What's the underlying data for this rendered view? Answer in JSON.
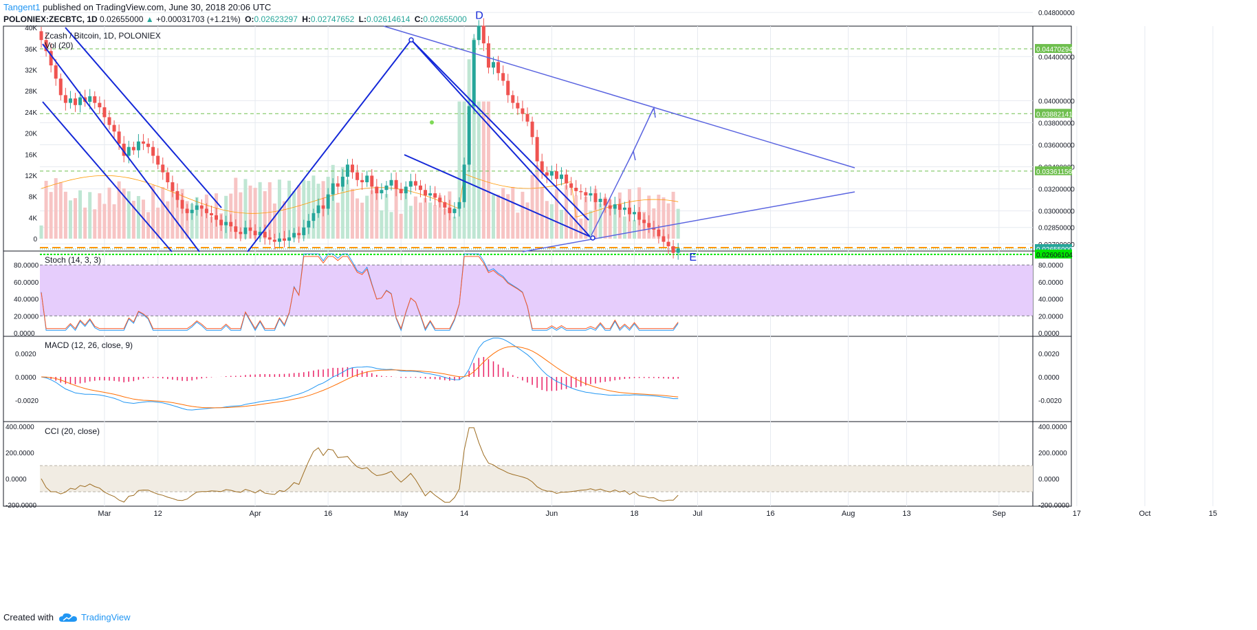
{
  "header": {
    "username": "Tangent1",
    "published_text": "published on TradingView.com, June 30, 2018 20:06 UTC",
    "symbol": "POLONIEX:ZECBTC, 1D",
    "last": "0.02655000",
    "change": "+0.00031703 (+1.21%)",
    "o_label": "O:",
    "o": "0.02623297",
    "h_label": "H:",
    "h": "0.02747652",
    "l_label": "L:",
    "l": "0.02614614",
    "c_label": "C:",
    "c": "0.02655000"
  },
  "footer": {
    "created_with": "Created with",
    "brand": "TradingView"
  },
  "colors": {
    "up": "#26a69a",
    "down": "#ef5350",
    "grid": "#e6eaf0",
    "trend": "#1428d8",
    "proj": "#5a64e0",
    "green_dash": "#6fbf4f",
    "orange_dash": "#ff9800",
    "stoch_k": "#2196f3",
    "stoch_d": "#ff5722",
    "macd": "#2196f3",
    "signal": "#ff6d00",
    "hist": "#e91e63",
    "cci": "#9c6b1f"
  },
  "chart_data": [
    {
      "type": "candlestick",
      "title": "Zcash / Bitcoin, 1D, POLONIEX",
      "legend": "Vol (20)",
      "x_ticks": [
        "Mar",
        "12",
        "Apr",
        "16",
        "May",
        "14",
        "Jun",
        "18",
        "Jul",
        "16",
        "Aug",
        "13",
        "Sep",
        "17",
        "Oct",
        "15"
      ],
      "x_start": "2018-02-16",
      "right_axis": [
        "0.04800000",
        "0.04400000",
        "0.04000000",
        "0.03800000",
        "0.03600000",
        "0.03400000",
        "0.03200000",
        "0.03000000",
        "0.02850000",
        "0.02700000"
      ],
      "left_axis": [
        "40K",
        "36K",
        "32K",
        "28K",
        "24K",
        "20K",
        "16K",
        "12K",
        "8K",
        "4K",
        "0"
      ],
      "price_tags": [
        {
          "label": "0.04470294",
          "value": 0.04470294
        },
        {
          "label": "0.03882141",
          "value": 0.03882141
        },
        {
          "label": "0.03361156",
          "value": 0.03361156
        },
        {
          "label": "0.02655000",
          "value": 0.02655
        },
        {
          "label": "0.02606104",
          "value": 0.02606104
        }
      ],
      "annotations": [
        {
          "text": "D",
          "date": "2018-05-17",
          "value": 0.0478
        },
        {
          "text": "E",
          "date": "2018-06-30",
          "value": 0.02585
        }
      ],
      "closes": [
        0.0455,
        0.0445,
        0.0432,
        0.042,
        0.0405,
        0.0398,
        0.0402,
        0.0396,
        0.0403,
        0.0399,
        0.0404,
        0.0398,
        0.0394,
        0.0385,
        0.0378,
        0.0372,
        0.0361,
        0.035,
        0.0358,
        0.0355,
        0.0363,
        0.0361,
        0.0358,
        0.035,
        0.0342,
        0.0335,
        0.0326,
        0.0318,
        0.031,
        0.0302,
        0.0298,
        0.0301,
        0.0305,
        0.0302,
        0.0298,
        0.0296,
        0.0292,
        0.0287,
        0.029,
        0.0286,
        0.0281,
        0.0279,
        0.0285,
        0.0282,
        0.0278,
        0.0281,
        0.0276,
        0.0274,
        0.0272,
        0.0275,
        0.0273,
        0.0276,
        0.028,
        0.0278,
        0.0285,
        0.0291,
        0.0298,
        0.0305,
        0.0302,
        0.0315,
        0.0325,
        0.0322,
        0.0331,
        0.0342,
        0.0335,
        0.0328,
        0.0326,
        0.0332,
        0.0322,
        0.0316,
        0.0319,
        0.0323,
        0.0328,
        0.032,
        0.0316,
        0.0322,
        0.0327,
        0.0323,
        0.0319,
        0.0314,
        0.0316,
        0.0312,
        0.0308,
        0.0303,
        0.0298,
        0.0302,
        0.0308,
        0.0342,
        0.0395,
        0.0455,
        0.0468,
        0.0452,
        0.043,
        0.0435,
        0.0425,
        0.0418,
        0.0405,
        0.0398,
        0.0393,
        0.0388,
        0.0381,
        0.0367,
        0.0345,
        0.0335,
        0.0332,
        0.0336,
        0.0329,
        0.0333,
        0.0325,
        0.0321,
        0.0318,
        0.0317,
        0.0314,
        0.0316,
        0.0308,
        0.0311,
        0.0305,
        0.0302,
        0.0306,
        0.0301,
        0.0303,
        0.0297,
        0.0299,
        0.0292,
        0.0289,
        0.0285,
        0.0283,
        0.0277,
        0.0272,
        0.0268,
        0.0262,
        0.0266
      ]
    },
    {
      "type": "line",
      "title": "Stoch (14, 3, 3)",
      "right_axis": [
        "80.0000",
        "60.0000",
        "40.0000",
        "20.0000",
        "0.0000"
      ],
      "ylim": [
        0,
        100
      ],
      "band": [
        20,
        80
      ]
    },
    {
      "type": "line",
      "title": "MACD (12, 26, close, 9)",
      "right_axis": [
        "0.0020",
        "0.0000",
        "-0.0020"
      ],
      "ylim": [
        -0.0032,
        0.0035
      ]
    },
    {
      "type": "line",
      "title": "CCI (20, close)",
      "right_axis": [
        "400.0000",
        "200.0000",
        "0.0000",
        "-200.0000"
      ],
      "ylim": [
        -200,
        400
      ],
      "band": [
        -100,
        100
      ]
    }
  ]
}
